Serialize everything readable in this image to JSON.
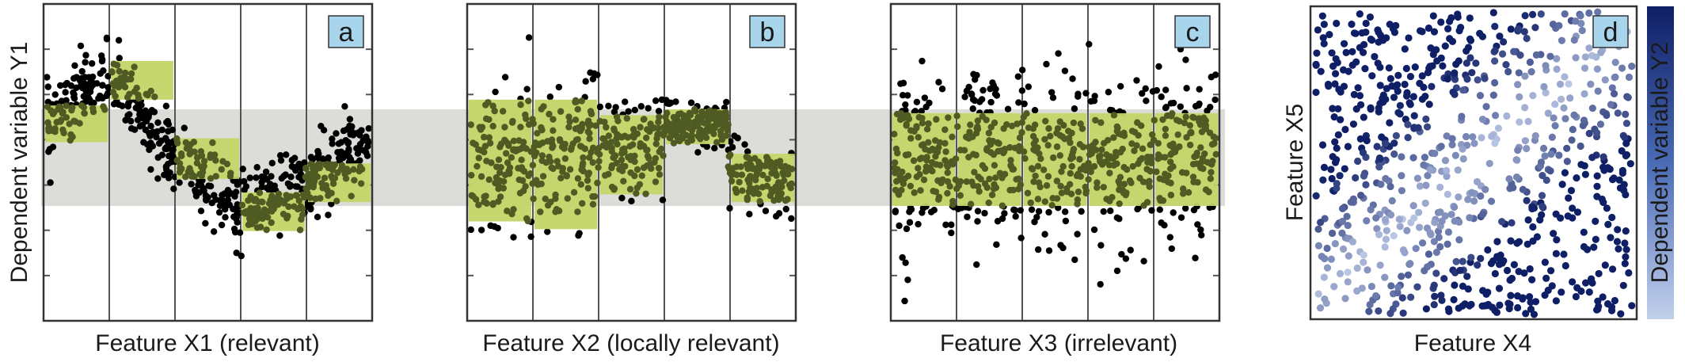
{
  "colors": {
    "points": "#000000",
    "highlight_box": "#c3d568",
    "highlight_inner_points": "#4f5b22",
    "band": "#dcdcd9",
    "badge": "#a9d5ec",
    "colormap_dark": "#0f1f66",
    "colormap_light": "#c3d0ec"
  },
  "panels": [
    {
      "letter": "a",
      "xlabel": "Feature X1 (relevant)",
      "ylabel": "Dependent variable Y1"
    },
    {
      "letter": "b",
      "xlabel": "Feature X2 (locally relevant)"
    },
    {
      "letter": "c",
      "xlabel": "Feature X3 (irrelevant)"
    },
    {
      "letter": "d",
      "xlabel": "Feature X4",
      "ylabel": "Feature X5",
      "colorbar_label": "Dependent variable Y2"
    }
  ],
  "chart_data": [
    {
      "type": "scatter",
      "panel": "a",
      "xlabel": "Feature X1 (relevant)",
      "ylabel": "Dependent variable Y1",
      "bins": 5,
      "bin_y_ranges": [
        [
          0.33,
          0.52
        ],
        [
          0.55,
          0.75
        ],
        [
          0.14,
          0.35
        ],
        [
          -0.13,
          0.07
        ],
        [
          0.02,
          0.22
        ]
      ],
      "mean_curve": [
        [
          0.0,
          0.42
        ],
        [
          0.2,
          0.67
        ],
        [
          0.4,
          0.24
        ],
        [
          0.6,
          0.0
        ],
        [
          0.8,
          0.1
        ],
        [
          1.0,
          0.35
        ]
      ],
      "band_y_range": [
        0.0,
        0.5
      ],
      "grid": false,
      "legend": "none"
    },
    {
      "type": "scatter",
      "panel": "b",
      "xlabel": "Feature X2 (locally relevant)",
      "bins": 5,
      "bin_y_ranges": [
        [
          -0.08,
          0.55
        ],
        [
          -0.12,
          0.55
        ],
        [
          0.06,
          0.47
        ],
        [
          0.32,
          0.5
        ],
        [
          0.02,
          0.27
        ]
      ],
      "band_y_range": [
        0.0,
        0.5
      ],
      "grid": false,
      "legend": "none"
    },
    {
      "type": "scatter",
      "panel": "c",
      "xlabel": "Feature X3 (irrelevant)",
      "bins": 5,
      "bin_y_ranges": [
        [
          0.0,
          0.48
        ],
        [
          0.0,
          0.48
        ],
        [
          0.0,
          0.48
        ],
        [
          0.0,
          0.48
        ],
        [
          0.0,
          0.48
        ]
      ],
      "band_y_range": [
        0.0,
        0.5
      ],
      "grid": false,
      "legend": "none"
    },
    {
      "type": "scatter",
      "panel": "d",
      "xlabel": "Feature X4",
      "ylabel": "Feature X5",
      "colorbar_label": "Dependent variable Y2",
      "color_encoding": "Y2 high = dark blue, low = light blue; light diagonal zone from lower-left toward upper-right",
      "grid": false,
      "legend": "colorbar-right"
    }
  ]
}
